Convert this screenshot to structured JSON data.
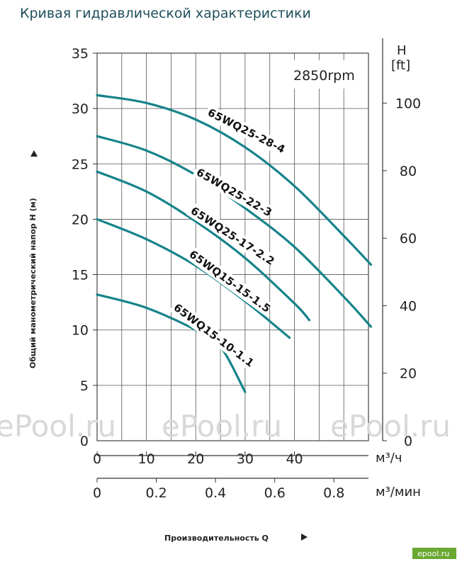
{
  "page": {
    "title": "Кривая гидравлической характеристики",
    "watermark": "ePool.ru",
    "corner_mark": "epool.ru"
  },
  "chart_data": {
    "type": "line",
    "annotation": "2850rpm",
    "ylabel": "Общий манометрический напор H (м)",
    "xlabel": "Производительность Q",
    "y_left": {
      "ticks": [
        "5",
        "10",
        "15",
        "20",
        "25",
        "30",
        "35"
      ],
      "zero": "0",
      "ylim": [
        0,
        35
      ]
    },
    "y_right": {
      "label_line1": "H",
      "label_line2": "[ft]",
      "ticks": [
        "0",
        "20",
        "40",
        "60",
        "80",
        "100"
      ]
    },
    "x_m3h": {
      "unit": "м³/ч",
      "ticks": [
        "0",
        "10",
        "20",
        "30",
        "40"
      ],
      "xlim": [
        0,
        55
      ]
    },
    "x_m3min": {
      "unit": "м³/мин",
      "ticks": [
        "0",
        "0.2",
        "0.4",
        "0.6",
        "0.8"
      ]
    },
    "line_color": "#16838a",
    "series": [
      {
        "name": "65WQ25-28-4",
        "x": [
          0,
          10,
          20,
          30,
          40,
          50,
          55.5
        ],
        "y": [
          31.2,
          30.5,
          29.0,
          26.5,
          23.0,
          18.5,
          15.9
        ]
      },
      {
        "name": "65WQ25-22-3",
        "x": [
          0,
          10,
          20,
          30,
          40,
          50,
          55.5
        ],
        "y": [
          27.5,
          26.2,
          24.0,
          21.0,
          17.5,
          13.0,
          10.3
        ]
      },
      {
        "name": "65WQ25-17-2.2",
        "x": [
          0,
          10,
          20,
          30,
          40,
          43
        ],
        "y": [
          24.3,
          22.5,
          19.8,
          16.5,
          12.4,
          10.9
        ]
      },
      {
        "name": "65WQ15-15-1.5",
        "x": [
          0,
          10,
          20,
          30,
          39
        ],
        "y": [
          20.0,
          18.2,
          15.8,
          12.6,
          9.3
        ]
      },
      {
        "name": "65WQ15-10-1.1",
        "x": [
          0,
          10,
          20,
          25,
          30
        ],
        "y": [
          13.2,
          12.0,
          10.0,
          8.5,
          4.4
        ]
      }
    ]
  }
}
